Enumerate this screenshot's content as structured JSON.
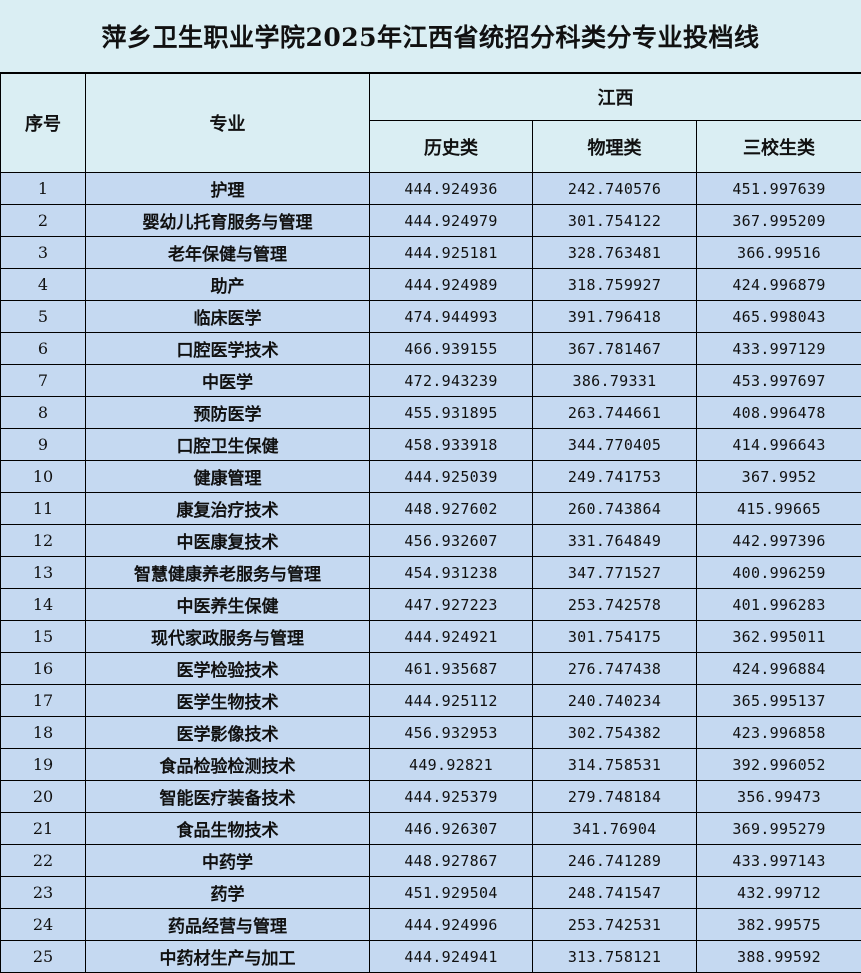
{
  "title": "萍乡卫生职业学院2025年江西省统招分科类分专业投档线",
  "headers": {
    "index": "序号",
    "major": "专业",
    "region": "江西",
    "history": "历史类",
    "physics": "物理类",
    "three_school": "三校生类"
  },
  "colors": {
    "header_bg": "#daeef3",
    "row_bg": "#c5d9f1",
    "border": "#000000"
  },
  "rows": [
    [
      "1",
      "护理",
      "444.924936",
      "242.740576",
      "451.997639"
    ],
    [
      "2",
      "婴幼儿托育服务与管理",
      "444.924979",
      "301.754122",
      "367.995209"
    ],
    [
      "3",
      "老年保健与管理",
      "444.925181",
      "328.763481",
      "366.99516"
    ],
    [
      "4",
      "助产",
      "444.924989",
      "318.759927",
      "424.996879"
    ],
    [
      "5",
      "临床医学",
      "474.944993",
      "391.796418",
      "465.998043"
    ],
    [
      "6",
      "口腔医学技术",
      "466.939155",
      "367.781467",
      "433.997129"
    ],
    [
      "7",
      "中医学",
      "472.943239",
      "386.79331",
      "453.997697"
    ],
    [
      "8",
      "预防医学",
      "455.931895",
      "263.744661",
      "408.996478"
    ],
    [
      "9",
      "口腔卫生保健",
      "458.933918",
      "344.770405",
      "414.996643"
    ],
    [
      "10",
      "健康管理",
      "444.925039",
      "249.741753",
      "367.9952"
    ],
    [
      "11",
      "康复治疗技术",
      "448.927602",
      "260.743864",
      "415.99665"
    ],
    [
      "12",
      "中医康复技术",
      "456.932607",
      "331.764849",
      "442.997396"
    ],
    [
      "13",
      "智慧健康养老服务与管理",
      "454.931238",
      "347.771527",
      "400.996259"
    ],
    [
      "14",
      "中医养生保健",
      "447.927223",
      "253.742578",
      "401.996283"
    ],
    [
      "15",
      "现代家政服务与管理",
      "444.924921",
      "301.754175",
      "362.995011"
    ],
    [
      "16",
      "医学检验技术",
      "461.935687",
      "276.747438",
      "424.996884"
    ],
    [
      "17",
      "医学生物技术",
      "444.925112",
      "240.740234",
      "365.995137"
    ],
    [
      "18",
      "医学影像技术",
      "456.932953",
      "302.754382",
      "423.996858"
    ],
    [
      "19",
      "食品检验检测技术",
      "449.92821",
      "314.758531",
      "392.996052"
    ],
    [
      "20",
      "智能医疗装备技术",
      "444.925379",
      "279.748184",
      "356.99473"
    ],
    [
      "21",
      "食品生物技术",
      "446.926307",
      "341.76904",
      "369.995279"
    ],
    [
      "22",
      "中药学",
      "448.927867",
      "246.741289",
      "433.997143"
    ],
    [
      "23",
      "药学",
      "451.929504",
      "248.741547",
      "432.99712"
    ],
    [
      "24",
      "药品经营与管理",
      "444.924996",
      "253.742531",
      "382.99575"
    ],
    [
      "25",
      "中药材生产与加工",
      "444.924941",
      "313.758121",
      "388.99592"
    ]
  ]
}
